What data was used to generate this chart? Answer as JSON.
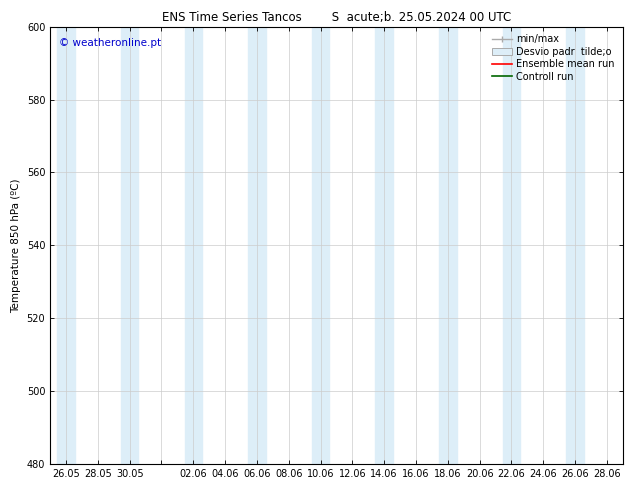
{
  "title": "ENS Time Series Tancos        S  acute;b. 25.05.2024 00 UTC",
  "ylabel": "Temperature 850 hPa (ºC)",
  "ylim": [
    480,
    600
  ],
  "yticks": [
    480,
    500,
    520,
    540,
    560,
    580,
    600
  ],
  "x_tick_labels": [
    "26.05",
    "28.05",
    "30.05",
    "",
    "02.06",
    "04.06",
    "06.06",
    "08.06",
    "10.06",
    "12.06",
    "14.06",
    "16.06",
    "18.06",
    "20.06",
    "22.06",
    "24.06",
    "26.06",
    "28.06"
  ],
  "watermark": "© weatheronline.pt",
  "watermark_color": "#0000cc",
  "background_color": "#ffffff",
  "shaded_color": "#ddeef8",
  "legend_labels": [
    "min/max",
    "Desvio padr  tilde;o",
    "Ensemble mean run",
    "Controll run"
  ],
  "shaded_columns": [
    0,
    2,
    4,
    6,
    8,
    10,
    12,
    14,
    16
  ],
  "n_ticks": 18
}
